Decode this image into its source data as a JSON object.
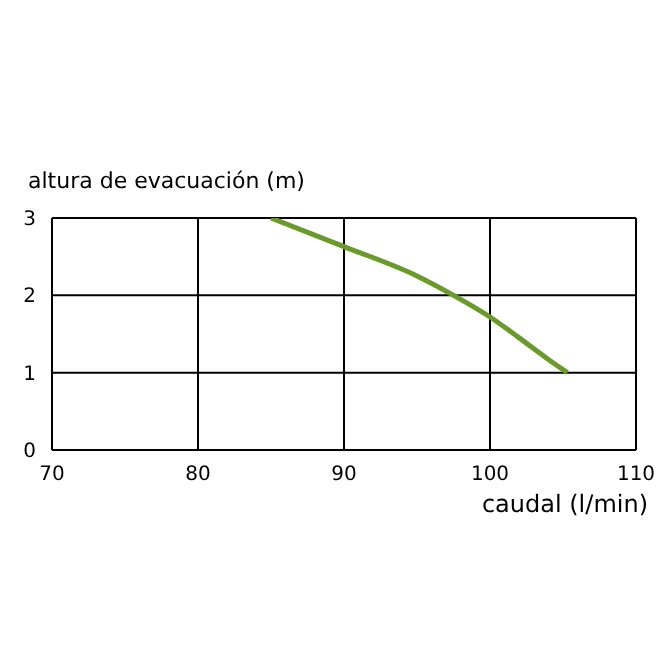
{
  "chart_data": {
    "type": "line",
    "xlabel": "caudal (l/min)",
    "ylabel": "altura de evacuación (m)",
    "x": [
      85,
      90,
      95,
      97.5,
      100,
      102,
      104,
      105.3
    ],
    "series": [
      {
        "color": "#6a9a2a",
        "values": [
          3,
          2.63,
          2.25,
          2.0,
          1.72,
          1.45,
          1.17,
          1
        ]
      }
    ],
    "xlim": [
      70,
      110
    ],
    "xticks": [
      70,
      80,
      90,
      100,
      110
    ],
    "ylim": [
      0,
      3
    ],
    "yticks": [
      0,
      1,
      2,
      3
    ],
    "grid": true,
    "marker": "none",
    "line_style": "solid"
  }
}
